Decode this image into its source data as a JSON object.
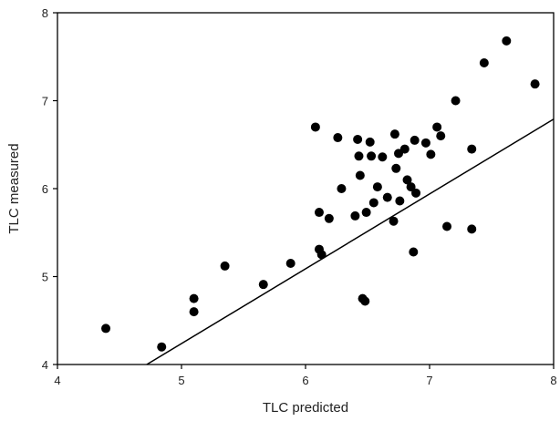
{
  "chart_data": {
    "type": "scatter",
    "title": "",
    "xlabel": "TLC predicted",
    "ylabel": "TLC measured",
    "xlim": [
      4,
      8
    ],
    "ylim": [
      4,
      8
    ],
    "x_ticks": [
      "4",
      "5",
      "6",
      "7",
      "8"
    ],
    "y_ticks": [
      "4",
      "5",
      "6",
      "7",
      "8"
    ],
    "grid": false,
    "legend": "none",
    "marker_color": "#000000",
    "reference_line": {
      "label": "",
      "points": [
        [
          4.72,
          4.0
        ],
        [
          8.0,
          6.79
        ]
      ]
    },
    "series": [
      {
        "points": [
          [
            4.39,
            4.41
          ],
          [
            4.84,
            4.2
          ],
          [
            5.1,
            4.75
          ],
          [
            5.1,
            4.6
          ],
          [
            5.35,
            5.12
          ],
          [
            5.66,
            4.91
          ],
          [
            5.88,
            5.15
          ],
          [
            6.08,
            6.7
          ],
          [
            6.11,
            5.73
          ],
          [
            6.11,
            5.31
          ],
          [
            6.13,
            5.25
          ],
          [
            6.19,
            5.66
          ],
          [
            6.26,
            6.58
          ],
          [
            6.29,
            6.0
          ],
          [
            6.4,
            5.69
          ],
          [
            6.42,
            6.56
          ],
          [
            6.43,
            6.37
          ],
          [
            6.44,
            6.15
          ],
          [
            6.46,
            4.75
          ],
          [
            6.48,
            4.72
          ],
          [
            6.49,
            5.73
          ],
          [
            6.52,
            6.53
          ],
          [
            6.53,
            6.37
          ],
          [
            6.55,
            5.84
          ],
          [
            6.58,
            6.02
          ],
          [
            6.62,
            6.36
          ],
          [
            6.66,
            5.9
          ],
          [
            6.71,
            5.63
          ],
          [
            6.72,
            6.62
          ],
          [
            6.73,
            6.23
          ],
          [
            6.75,
            6.4
          ],
          [
            6.76,
            5.86
          ],
          [
            6.8,
            6.45
          ],
          [
            6.82,
            6.1
          ],
          [
            6.85,
            6.02
          ],
          [
            6.87,
            5.28
          ],
          [
            6.88,
            6.55
          ],
          [
            6.89,
            5.95
          ],
          [
            6.97,
            6.52
          ],
          [
            7.01,
            6.39
          ],
          [
            7.06,
            6.7
          ],
          [
            7.09,
            6.6
          ],
          [
            7.14,
            5.57
          ],
          [
            7.21,
            7.0
          ],
          [
            7.34,
            6.45
          ],
          [
            7.34,
            5.54
          ],
          [
            7.44,
            7.43
          ],
          [
            7.62,
            7.68
          ],
          [
            7.85,
            7.19
          ]
        ]
      }
    ]
  }
}
